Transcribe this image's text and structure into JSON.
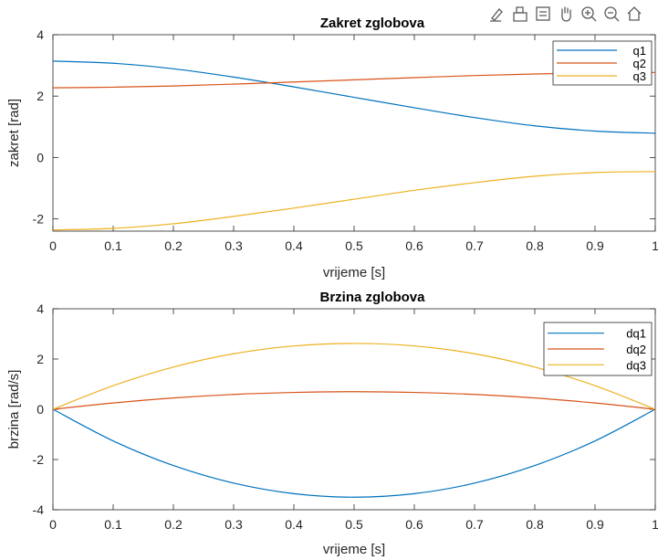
{
  "colors": {
    "series1": "#0072BD",
    "series2": "#D95319",
    "series3": "#EDB120",
    "axis": "#262626",
    "toolbar_icon": "#5a5a5a"
  },
  "toolbar": {
    "icons": [
      "brush-icon",
      "print-icon",
      "export-icon",
      "pan-icon",
      "zoom-in-icon",
      "zoom-out-icon",
      "home-icon"
    ]
  },
  "chart_data": [
    {
      "type": "line",
      "title": "Zakret zglobova",
      "xlabel": "vrijeme [s]",
      "ylabel": "zakret [rad]",
      "xlim": [
        0,
        1
      ],
      "ylim": [
        -2.4,
        4
      ],
      "xticks": [
        "0",
        "0.1",
        "0.2",
        "0.3",
        "0.4",
        "0.5",
        "0.6",
        "0.7",
        "0.8",
        "0.9",
        "1"
      ],
      "yticks": [
        "-2",
        "0",
        "2",
        "4"
      ],
      "legend_position": "top-right",
      "x": [
        0,
        0.1,
        0.2,
        0.3,
        0.4,
        0.5,
        0.6,
        0.7,
        0.8,
        0.9,
        1.0
      ],
      "series": [
        {
          "name": "q1",
          "values": [
            3.14,
            3.07,
            2.89,
            2.62,
            2.3,
            1.96,
            1.62,
            1.3,
            1.03,
            0.86,
            0.79
          ]
        },
        {
          "name": "q2",
          "values": [
            2.27,
            2.29,
            2.33,
            2.39,
            2.46,
            2.53,
            2.6,
            2.67,
            2.72,
            2.76,
            2.77
          ]
        },
        {
          "name": "q3",
          "values": [
            -2.36,
            -2.31,
            -2.16,
            -1.92,
            -1.65,
            -1.36,
            -1.07,
            -0.82,
            -0.61,
            -0.49,
            -0.46
          ]
        }
      ]
    },
    {
      "type": "line",
      "title": "Brzina zglobova",
      "xlabel": "vrijeme [s]",
      "ylabel": "brzina [rad/s]",
      "xlim": [
        0,
        1
      ],
      "ylim": [
        -4,
        4
      ],
      "xticks": [
        "0",
        "0.1",
        "0.2",
        "0.3",
        "0.4",
        "0.5",
        "0.6",
        "0.7",
        "0.8",
        "0.9",
        "1"
      ],
      "yticks": [
        "-4",
        "-2",
        "0",
        "2",
        "4"
      ],
      "legend_position": "top-right",
      "x": [
        0,
        0.1,
        0.2,
        0.3,
        0.4,
        0.5,
        0.6,
        0.7,
        0.8,
        0.9,
        1.0
      ],
      "series": [
        {
          "name": "dq1",
          "values": [
            0,
            -1.26,
            -2.24,
            -2.94,
            -3.36,
            -3.5,
            -3.36,
            -2.94,
            -2.24,
            -1.26,
            0
          ]
        },
        {
          "name": "dq2",
          "values": [
            0,
            0.25,
            0.45,
            0.59,
            0.67,
            0.7,
            0.67,
            0.59,
            0.45,
            0.25,
            0
          ]
        },
        {
          "name": "dq3",
          "values": [
            0,
            0.94,
            1.68,
            2.21,
            2.52,
            2.62,
            2.52,
            2.21,
            1.68,
            0.94,
            0
          ]
        }
      ]
    }
  ]
}
